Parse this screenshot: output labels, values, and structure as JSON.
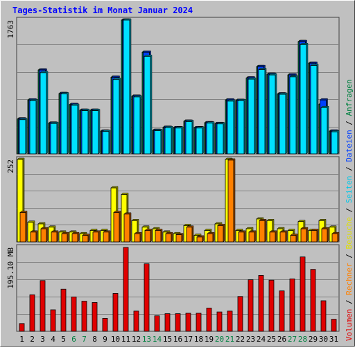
{
  "title": "Tages-Statistik im Monat Januar 2024",
  "colors": {
    "background": "#c0c0c0",
    "title": "#0000ff",
    "anfragen": "#008040",
    "dateien": "#0040ff",
    "seiten": "#00e0ff",
    "besuche": "#ffff00",
    "rechner": "#ff8000",
    "volumen": "#e00000",
    "weekend_label": "#008040",
    "weekday_label": "#000000"
  },
  "chart_data": [
    {
      "type": "bar",
      "panel": "top",
      "ymax_label": "1763",
      "ylim": [
        0,
        1763
      ],
      "grid": true,
      "categories": [
        "1",
        "2",
        "3",
        "4",
        "5",
        "6",
        "7",
        "8",
        "9",
        "10",
        "11",
        "12",
        "13",
        "14",
        "15",
        "16",
        "17",
        "18",
        "19",
        "20",
        "21",
        "22",
        "23",
        "24",
        "25",
        "26",
        "27",
        "28",
        "29",
        "30",
        "31"
      ],
      "series": [
        {
          "name": "Anfragen",
          "color": "#008040",
          "values": [
            460,
            710,
            1105,
            405,
            795,
            650,
            575,
            575,
            300,
            1010,
            1763,
            760,
            1340,
            310,
            350,
            345,
            430,
            345,
            410,
            400,
            710,
            705,
            1000,
            1150,
            1050,
            790,
            1040,
            1480,
            1195,
            655,
            300
          ]
        },
        {
          "name": "Dateien",
          "color": "#0040ff",
          "values": [
            460,
            710,
            1105,
            405,
            795,
            650,
            575,
            575,
            300,
            1010,
            1763,
            760,
            1340,
            310,
            350,
            345,
            430,
            345,
            410,
            400,
            710,
            705,
            1000,
            1150,
            1050,
            790,
            1040,
            1480,
            1195,
            710,
            300
          ]
        },
        {
          "name": "Seiten",
          "color": "#00e0ff",
          "values": [
            450,
            700,
            1070,
            400,
            790,
            640,
            570,
            570,
            295,
            980,
            1763,
            750,
            1285,
            305,
            345,
            340,
            425,
            340,
            405,
            395,
            695,
            700,
            985,
            1110,
            1040,
            785,
            1015,
            1440,
            1165,
            610,
            290
          ]
        }
      ]
    },
    {
      "type": "bar",
      "panel": "middle",
      "ymax_label": "252",
      "ylim": [
        0,
        252
      ],
      "grid": true,
      "categories": [
        "1",
        "2",
        "3",
        "4",
        "5",
        "6",
        "7",
        "8",
        "9",
        "10",
        "11",
        "12",
        "13",
        "14",
        "15",
        "16",
        "17",
        "18",
        "19",
        "20",
        "21",
        "22",
        "23",
        "24",
        "25",
        "26",
        "27",
        "28",
        "29",
        "30",
        "31"
      ],
      "series": [
        {
          "name": "Besuche",
          "color": "#ffff00",
          "values": [
            252,
            60,
            55,
            45,
            30,
            30,
            25,
            35,
            35,
            165,
            145,
            65,
            45,
            40,
            30,
            25,
            50,
            20,
            35,
            55,
            252,
            35,
            40,
            70,
            65,
            40,
            35,
            62,
            35,
            65,
            45
          ]
        },
        {
          "name": "Rechner",
          "color": "#ff8000",
          "values": [
            90,
            30,
            40,
            30,
            25,
            25,
            20,
            30,
            30,
            90,
            85,
            25,
            35,
            35,
            25,
            22,
            45,
            15,
            25,
            50,
            250,
            30,
            30,
            65,
            30,
            30,
            20,
            40,
            35,
            40,
            25
          ]
        }
      ]
    },
    {
      "type": "bar",
      "panel": "bottom",
      "ymax_label": "195.10 MB",
      "ylim": [
        0,
        195.1
      ],
      "grid": true,
      "categories": [
        "1",
        "2",
        "3",
        "4",
        "5",
        "6",
        "7",
        "8",
        "9",
        "10",
        "11",
        "12",
        "13",
        "14",
        "15",
        "16",
        "17",
        "18",
        "19",
        "20",
        "21",
        "22",
        "23",
        "24",
        "25",
        "26",
        "27",
        "28",
        "29",
        "30",
        "31"
      ],
      "series": [
        {
          "name": "Volumen",
          "color": "#e00000",
          "values": [
            18,
            85,
            118,
            50,
            98,
            80,
            70,
            67,
            30,
            88,
            195.1,
            47,
            157,
            36,
            41,
            41,
            42,
            42,
            54,
            45,
            47,
            81,
            120,
            130,
            119,
            94,
            122,
            173,
            144,
            71,
            28
          ]
        }
      ]
    }
  ],
  "legend": {
    "volumen": "Volumen",
    "sep1": " / ",
    "rechner": "Rechner",
    "sep2": " / ",
    "besuche": "Besuche",
    "sep3": " / ",
    "seiten": "Seiten",
    "sep4": " / ",
    "dateien": "Dateien",
    "sep5": " / ",
    "anfragen": "Anfragen"
  },
  "weekend_days": [
    "6",
    "7",
    "13",
    "14",
    "20",
    "21",
    "27",
    "28"
  ]
}
